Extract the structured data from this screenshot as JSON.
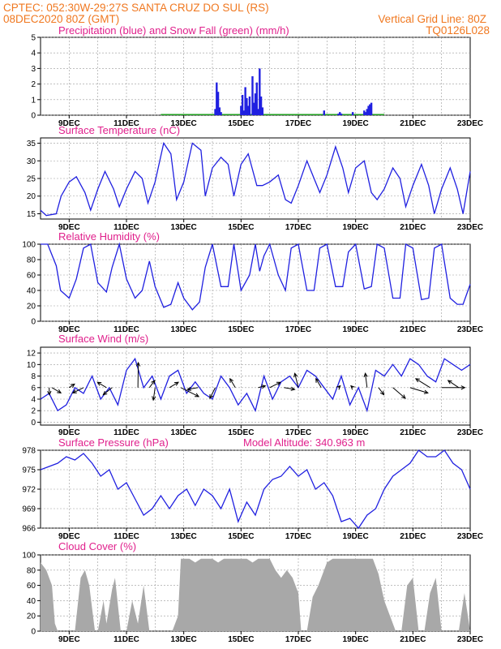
{
  "header": {
    "line1": "CPTEC:  052:30W-29:27S  SANTA CRUZ DO SUL (RS)",
    "line2_left": "08DEC2020 80Z (GMT)",
    "line2_right": "Vertical Grid Line: 80Z",
    "line3_right": "TQ0126L028"
  },
  "colors": {
    "accent": "#f07820",
    "title": "#e0208c",
    "line": "#2020e0",
    "snow": "#20a020",
    "cloud": "#a8a8a8"
  },
  "x_axis": {
    "labels": [
      "9DEC",
      "11DEC",
      "13DEC",
      "15DEC",
      "17DEC",
      "19DEC",
      "21DEC",
      "23DEC"
    ],
    "label_days": [
      9,
      11,
      13,
      15,
      17,
      19,
      21,
      23
    ],
    "start_day": 8.0,
    "end_day": 23.0
  },
  "chart_data": [
    {
      "type": "bar",
      "title": "Precipitation (blue) and Snow Fall (green) (mm/h)",
      "ylim": [
        0,
        5
      ],
      "yticks": [
        "0",
        "1",
        "2",
        "3",
        "4",
        "5"
      ],
      "ytick_values": [
        0,
        1,
        2,
        3,
        4,
        5
      ],
      "series": [
        {
          "name": "Precipitation",
          "color": "#2020e0",
          "x": [
            14.1,
            14.15,
            14.2,
            14.25,
            14.3,
            15.0,
            15.05,
            15.1,
            15.15,
            15.2,
            15.25,
            15.3,
            15.4,
            15.45,
            15.5,
            15.55,
            15.6,
            15.65,
            15.7,
            15.75,
            17.9,
            18.4,
            18.45,
            18.5,
            18.9,
            19.3,
            19.35,
            19.4,
            19.45,
            19.5,
            19.55
          ],
          "values": [
            0.4,
            2.1,
            1.5,
            0.5,
            0.2,
            0.6,
            1.3,
            0.3,
            1.8,
            1.1,
            0.6,
            1.2,
            2.5,
            0.8,
            1.4,
            2.1,
            0.4,
            3.0,
            1.2,
            0.5,
            0.3,
            0.1,
            0.2,
            0.1,
            0.2,
            0.3,
            0.2,
            0.4,
            0.6,
            0.7,
            0.8
          ]
        },
        {
          "name": "Snow Fall",
          "color": "#20a020",
          "x": [],
          "values": []
        }
      ]
    },
    {
      "type": "line",
      "title": "Surface Temperature (nC)",
      "ylim": [
        13.5,
        36.5
      ],
      "yticks": [
        "15",
        "20",
        "25",
        "30",
        "35"
      ],
      "ytick_values": [
        15,
        20,
        25,
        30,
        35
      ],
      "series": [
        {
          "name": "Surface Temperature",
          "color": "#2020e0",
          "x": [
            8.0,
            8.2,
            8.55,
            8.72,
            9.0,
            9.25,
            9.55,
            9.75,
            10.0,
            10.25,
            10.55,
            10.75,
            11.0,
            11.3,
            11.55,
            11.75,
            12.0,
            12.3,
            12.55,
            12.75,
            13.0,
            13.3,
            13.6,
            13.75,
            14.0,
            14.3,
            14.55,
            14.75,
            15.0,
            15.25,
            15.55,
            15.75,
            16.0,
            16.3,
            16.55,
            16.75,
            17.0,
            17.3,
            17.55,
            17.75,
            18.0,
            18.3,
            18.55,
            18.75,
            19.0,
            19.3,
            19.55,
            19.75,
            20.0,
            20.3,
            20.55,
            20.75,
            21.0,
            21.3,
            21.55,
            21.75,
            22.0,
            22.3,
            22.55,
            22.75,
            23.0
          ],
          "values": [
            16,
            14.5,
            15,
            20,
            24,
            25.5,
            21,
            16,
            22,
            27,
            22,
            17,
            22,
            27,
            25,
            18,
            24,
            35,
            32,
            19,
            24,
            35,
            33,
            20,
            28,
            31,
            29,
            20,
            29,
            32,
            23,
            23,
            24,
            26,
            19,
            18,
            23,
            30,
            25,
            21,
            26,
            34,
            28,
            21,
            28,
            30,
            21,
            19,
            22,
            28,
            25,
            17,
            23,
            29,
            23,
            15,
            22,
            28,
            22,
            15,
            27
          ]
        }
      ]
    },
    {
      "type": "line",
      "title": "Relative Humidity (%)",
      "ylim": [
        0,
        100
      ],
      "yticks": [
        "0",
        "20",
        "40",
        "60",
        "80",
        "100"
      ],
      "ytick_values": [
        0,
        20,
        40,
        60,
        80,
        100
      ],
      "series": [
        {
          "name": "Relative Humidity",
          "color": "#2020e0",
          "x": [
            8.0,
            8.25,
            8.55,
            8.7,
            9.0,
            9.25,
            9.5,
            9.75,
            10.0,
            10.3,
            10.5,
            10.75,
            11.0,
            11.3,
            11.55,
            11.8,
            12.0,
            12.3,
            12.55,
            12.8,
            13.0,
            13.3,
            13.55,
            13.75,
            14.0,
            14.3,
            14.55,
            14.75,
            15.0,
            15.3,
            15.5,
            15.65,
            15.8,
            16.0,
            16.3,
            16.55,
            16.75,
            17.0,
            17.3,
            17.55,
            17.75,
            18.0,
            18.3,
            18.55,
            18.75,
            19.0,
            19.3,
            19.55,
            19.75,
            20.0,
            20.3,
            20.55,
            20.75,
            21.0,
            21.3,
            21.55,
            21.75,
            22.0,
            22.3,
            22.55,
            22.75,
            23.0
          ],
          "values": [
            100,
            100,
            72,
            40,
            30,
            55,
            95,
            100,
            50,
            38,
            70,
            100,
            55,
            30,
            40,
            78,
            45,
            18,
            22,
            50,
            30,
            15,
            25,
            70,
            100,
            45,
            45,
            100,
            40,
            60,
            100,
            65,
            85,
            100,
            60,
            40,
            95,
            100,
            40,
            40,
            95,
            100,
            45,
            45,
            90,
            100,
            42,
            45,
            100,
            95,
            30,
            30,
            100,
            95,
            28,
            30,
            95,
            100,
            30,
            22,
            22,
            48
          ]
        }
      ]
    },
    {
      "type": "line",
      "title": "Surface Wind (m/s)",
      "ylim": [
        -0.5,
        13
      ],
      "yticks": [
        "0",
        "2",
        "4",
        "6",
        "8",
        "10",
        "12"
      ],
      "ytick_values": [
        0,
        2,
        4,
        6,
        8,
        10,
        12
      ],
      "series": [
        {
          "name": "Surface Wind",
          "color": "#2020e0",
          "x": [
            8.0,
            8.3,
            8.6,
            8.9,
            9.2,
            9.5,
            9.8,
            10.1,
            10.4,
            10.7,
            11.0,
            11.3,
            11.6,
            11.9,
            12.2,
            12.5,
            12.8,
            13.1,
            13.4,
            13.7,
            14.0,
            14.3,
            14.6,
            14.9,
            15.2,
            15.5,
            15.8,
            16.1,
            16.4,
            16.7,
            17.0,
            17.3,
            17.6,
            17.9,
            18.2,
            18.5,
            18.8,
            19.1,
            19.4,
            19.7,
            20.0,
            20.3,
            20.6,
            20.9,
            21.2,
            21.5,
            21.8,
            22.1,
            22.4,
            22.7,
            23.0
          ],
          "values": [
            4,
            5,
            2,
            3,
            6,
            5,
            8,
            4,
            6,
            3,
            9,
            11,
            6,
            8,
            4,
            8,
            9,
            5,
            7,
            5,
            4,
            8,
            6,
            3,
            5,
            2,
            8,
            4,
            7,
            8,
            6,
            9,
            8,
            6,
            4,
            8,
            3,
            6,
            2,
            9,
            8,
            10,
            8,
            11,
            10,
            8,
            7,
            11,
            10,
            9,
            10
          ]
        }
      ],
      "arrows": [
        {
          "day": 8.3,
          "u": 0.2,
          "v": -4
        },
        {
          "day": 8.4,
          "u": 5,
          "v": -3
        },
        {
          "day": 9.0,
          "u": 3,
          "v": 2
        },
        {
          "day": 9.5,
          "u": -6,
          "v": -3
        },
        {
          "day": 10.3,
          "u": -5,
          "v": 3
        },
        {
          "day": 10.5,
          "u": -5,
          "v": -4
        },
        {
          "day": 11.4,
          "u": 0.2,
          "v": 14
        },
        {
          "day": 11.8,
          "u": 3,
          "v": 4
        },
        {
          "day": 12.0,
          "u": -1,
          "v": -7
        },
        {
          "day": 12.5,
          "u": 5,
          "v": 3
        },
        {
          "day": 12.9,
          "u": 10,
          "v": -5
        },
        {
          "day": 13.5,
          "u": -6,
          "v": -1
        },
        {
          "day": 14.1,
          "u": -3,
          "v": -6
        },
        {
          "day": 14.8,
          "u": -3,
          "v": 5
        },
        {
          "day": 15.6,
          "u": 4,
          "v": 1
        },
        {
          "day": 16.0,
          "u": 6,
          "v": 3
        },
        {
          "day": 16.5,
          "u": 6,
          "v": -1
        },
        {
          "day": 17.0,
          "u": -2,
          "v": 8
        },
        {
          "day": 17.8,
          "u": -3,
          "v": 5
        },
        {
          "day": 18.4,
          "u": 1,
          "v": 1
        },
        {
          "day": 18.9,
          "u": -1,
          "v": 1
        },
        {
          "day": 19.4,
          "u": -1,
          "v": 8
        },
        {
          "day": 19.8,
          "u": 3,
          "v": -4
        },
        {
          "day": 20.3,
          "u": 7,
          "v": -6
        },
        {
          "day": 20.9,
          "u": 10,
          "v": -3
        },
        {
          "day": 21.6,
          "u": -8,
          "v": 5
        },
        {
          "day": 22.0,
          "u": 13,
          "v": 0
        },
        {
          "day": 22.6,
          "u": -6,
          "v": 4
        }
      ]
    },
    {
      "type": "line",
      "title": "Surface Pressure (hPa)",
      "subtitle": "Model Altitude: 340.963 m",
      "ylim": [
        966,
        978
      ],
      "yticks": [
        "966",
        "969",
        "972",
        "975",
        "978"
      ],
      "ytick_values": [
        966,
        969,
        972,
        975,
        978
      ],
      "series": [
        {
          "name": "Surface Pressure",
          "color": "#2020e0",
          "x": [
            8.0,
            8.3,
            8.6,
            8.9,
            9.2,
            9.5,
            9.8,
            10.1,
            10.4,
            10.7,
            11.0,
            11.3,
            11.6,
            11.9,
            12.2,
            12.5,
            12.8,
            13.1,
            13.4,
            13.7,
            14.0,
            14.3,
            14.6,
            14.9,
            15.2,
            15.5,
            15.8,
            16.1,
            16.4,
            16.7,
            17.0,
            17.3,
            17.6,
            17.9,
            18.2,
            18.5,
            18.8,
            19.1,
            19.4,
            19.7,
            20.0,
            20.3,
            20.6,
            20.9,
            21.2,
            21.5,
            21.8,
            22.1,
            22.4,
            22.7,
            23.0
          ],
          "values": [
            975,
            975.5,
            976,
            977,
            976.5,
            977.5,
            976,
            974,
            975,
            972,
            973,
            970.5,
            968,
            969,
            971,
            969,
            971,
            972,
            969.5,
            972,
            971,
            969,
            972,
            967,
            970,
            968,
            972,
            973.5,
            974,
            975.5,
            974,
            975,
            972,
            973,
            971,
            967,
            967.5,
            966,
            968,
            969,
            972,
            974,
            975,
            976,
            978,
            977,
            977,
            978,
            976,
            975,
            972
          ]
        }
      ]
    },
    {
      "type": "area",
      "title": "Cloud Cover (%)",
      "ylim": [
        0,
        100
      ],
      "yticks": [
        "0",
        "20",
        "40",
        "60",
        "80",
        "100"
      ],
      "ytick_values": [
        0,
        20,
        40,
        60,
        80,
        100
      ],
      "series": [
        {
          "name": "Cloud Cover",
          "color": "#a8a8a8",
          "x": [
            8.0,
            8.2,
            8.4,
            8.5,
            8.6,
            8.8,
            9.0,
            9.2,
            9.4,
            9.55,
            9.7,
            9.9,
            10.0,
            10.2,
            10.3,
            10.5,
            10.6,
            10.8,
            11.0,
            11.2,
            11.4,
            11.6,
            11.8,
            12.0,
            12.2,
            12.4,
            12.6,
            12.8,
            12.9,
            13.0,
            13.2,
            13.4,
            13.6,
            13.8,
            14.0,
            14.2,
            14.4,
            14.6,
            14.8,
            15.0,
            15.2,
            15.4,
            15.6,
            15.8,
            16.0,
            16.2,
            16.4,
            16.6,
            16.8,
            17.0,
            17.1,
            17.3,
            17.5,
            17.7,
            17.9,
            18.0,
            18.2,
            18.4,
            18.6,
            18.8,
            19.0,
            19.2,
            19.4,
            19.6,
            19.8,
            20.0,
            20.2,
            20.4,
            20.6,
            20.8,
            21.0,
            21.2,
            21.4,
            21.6,
            21.8,
            22.0,
            22.2,
            22.4,
            22.6,
            22.8,
            23.0
          ],
          "values": [
            90,
            80,
            60,
            10,
            0,
            0,
            0,
            0,
            70,
            80,
            60,
            0,
            0,
            40,
            10,
            55,
            70,
            0,
            0,
            40,
            10,
            60,
            0,
            0,
            0,
            0,
            0,
            20,
            95,
            95,
            95,
            90,
            95,
            95,
            95,
            90,
            95,
            95,
            95,
            95,
            95,
            90,
            95,
            95,
            95,
            80,
            70,
            80,
            70,
            50,
            0,
            0,
            45,
            60,
            80,
            90,
            95,
            95,
            95,
            95,
            95,
            95,
            95,
            95,
            75,
            40,
            20,
            0,
            0,
            60,
            70,
            0,
            0,
            50,
            70,
            0,
            0,
            0,
            0,
            50,
            0
          ]
        }
      ]
    }
  ]
}
